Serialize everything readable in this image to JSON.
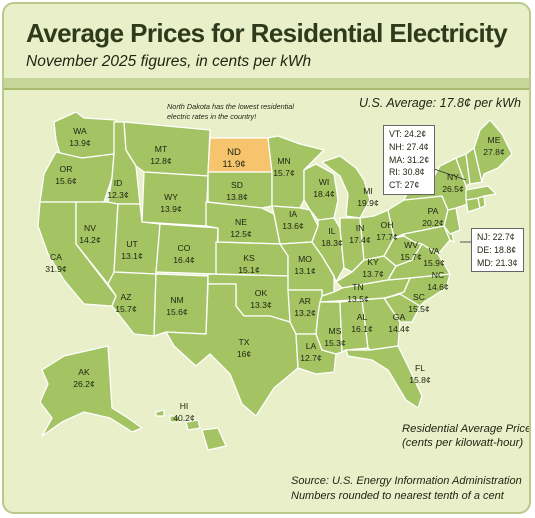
{
  "title": "Average Prices for Residential Electricity",
  "subtitle": "November 2025 figures, in cents per kWh",
  "us_average": "U.S. Average: 17.8¢ per kWh",
  "note_line1": "North Dakota has the lowest residential",
  "note_line2": "electric rates in the country!",
  "legend_line1": "Residential Average Price",
  "legend_line2": "(cents per kilowatt-hour)",
  "source_line1": "Source: U.S. Energy Information Administration",
  "source_line2": "Numbers rounded to nearest tenth of a cent",
  "colors": {
    "state": "#a4c464",
    "highlight": "#f6c46d",
    "background": "#e8efc9"
  },
  "states": {
    "WA": {
      "abbr": "WA",
      "price": "13.9¢"
    },
    "OR": {
      "abbr": "OR",
      "price": "15.6¢"
    },
    "CA": {
      "abbr": "CA",
      "price": "31.9¢"
    },
    "NV": {
      "abbr": "NV",
      "price": "14.2¢"
    },
    "ID": {
      "abbr": "ID",
      "price": "12.3¢"
    },
    "MT": {
      "abbr": "MT",
      "price": "12.8¢"
    },
    "WY": {
      "abbr": "WY",
      "price": "13.9¢"
    },
    "UT": {
      "abbr": "UT",
      "price": "13.1¢"
    },
    "AZ": {
      "abbr": "AZ",
      "price": "15.7¢"
    },
    "CO": {
      "abbr": "CO",
      "price": "16.4¢"
    },
    "NM": {
      "abbr": "NM",
      "price": "15.6¢"
    },
    "ND": {
      "abbr": "ND",
      "price": "11.9¢"
    },
    "SD": {
      "abbr": "SD",
      "price": "13.8¢"
    },
    "NE": {
      "abbr": "NE",
      "price": "12.5¢"
    },
    "KS": {
      "abbr": "KS",
      "price": "15.1¢"
    },
    "OK": {
      "abbr": "OK",
      "price": "13.3¢"
    },
    "TX": {
      "abbr": "TX",
      "price": "16¢"
    },
    "MN": {
      "abbr": "MN",
      "price": "15.7¢"
    },
    "IA": {
      "abbr": "IA",
      "price": "13.6¢"
    },
    "MO": {
      "abbr": "MO",
      "price": "13.1¢"
    },
    "AR": {
      "abbr": "AR",
      "price": "13.2¢"
    },
    "LA": {
      "abbr": "LA",
      "price": "12.7¢"
    },
    "WI": {
      "abbr": "WI",
      "price": "18.4¢"
    },
    "IL": {
      "abbr": "IL",
      "price": "18.3¢"
    },
    "MI": {
      "abbr": "MI",
      "price": "19.9¢"
    },
    "IN": {
      "abbr": "IN",
      "price": "17.4¢"
    },
    "OH": {
      "abbr": "OH",
      "price": "17.7¢"
    },
    "KY": {
      "abbr": "KY",
      "price": "13.7¢"
    },
    "TN": {
      "abbr": "TN",
      "price": "13.5¢"
    },
    "MS": {
      "abbr": "MS",
      "price": "15.3¢"
    },
    "AL": {
      "abbr": "AL",
      "price": "16.1¢"
    },
    "GA": {
      "abbr": "GA",
      "price": "14.4¢"
    },
    "FL": {
      "abbr": "FL",
      "price": "15.8¢"
    },
    "SC": {
      "abbr": "SC",
      "price": "15.5¢"
    },
    "NC": {
      "abbr": "NC",
      "price": "14.6¢"
    },
    "VA": {
      "abbr": "VA",
      "price": "15.9¢"
    },
    "WV": {
      "abbr": "WV",
      "price": "15.7¢"
    },
    "PA": {
      "abbr": "PA",
      "price": "20.2¢"
    },
    "NY": {
      "abbr": "NY",
      "price": "26.5¢"
    },
    "ME": {
      "abbr": "ME",
      "price": "27.8¢"
    },
    "AK": {
      "abbr": "AK",
      "price": "26.2¢"
    },
    "HI": {
      "abbr": "HI",
      "price": "40.2¢"
    }
  },
  "ne_callout": [
    "VT: 24.2¢",
    "NH: 27.4¢",
    "MA: 31.2¢",
    "RI: 30.8¢",
    "CT: 27¢"
  ],
  "mid_callout": [
    "NJ: 22.7¢",
    "DE: 18.8¢",
    "MD: 21.3¢"
  ]
}
